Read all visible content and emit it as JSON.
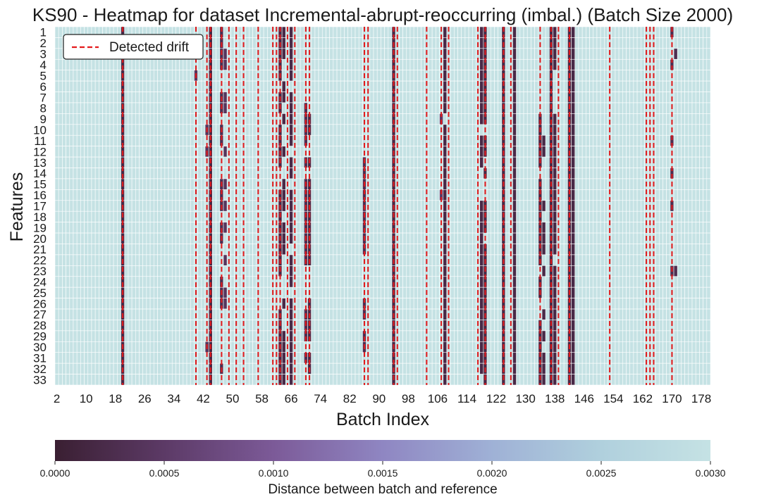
{
  "chart_data": {
    "type": "heatmap",
    "title": "KS90 - Heatmap for dataset Incremental-abrupt-reoccurring (imbal.) (Batch Size 2000)",
    "xlabel": "Batch Index",
    "ylabel": "Features",
    "x_range": [
      2,
      180
    ],
    "x_tick_labels": [
      "2",
      "10",
      "18",
      "26",
      "34",
      "42",
      "50",
      "58",
      "66",
      "74",
      "82",
      "90",
      "98",
      "106",
      "114",
      "122",
      "130",
      "138",
      "146",
      "154",
      "162",
      "170",
      "178"
    ],
    "y_tick_labels": [
      "1",
      "2",
      "3",
      "4",
      "5",
      "6",
      "7",
      "8",
      "9",
      "10",
      "11",
      "12",
      "13",
      "14",
      "15",
      "16",
      "17",
      "18",
      "19",
      "20",
      "21",
      "22",
      "23",
      "24",
      "25",
      "26",
      "27",
      "28",
      "29",
      "30",
      "31",
      "32",
      "33"
    ],
    "legend": {
      "entries": [
        "Detected drift"
      ],
      "placement": "top-left"
    },
    "drift_line_color": "#e41a1c",
    "detected_drift_batches": [
      20,
      40,
      43,
      44,
      47,
      49,
      51,
      53,
      57,
      61,
      62,
      63,
      65,
      67,
      70,
      71,
      86,
      87,
      94,
      95,
      103,
      107,
      109,
      117,
      119,
      124,
      126,
      134,
      137,
      139,
      142,
      153,
      163,
      164,
      165,
      170
    ],
    "default_distance": 0.003,
    "drift_columns": [
      {
        "batch": 20,
        "features": [
          1,
          2,
          3,
          4,
          5,
          6,
          7,
          8,
          9,
          10,
          11,
          12,
          13,
          14,
          15,
          16,
          17,
          18,
          19,
          20,
          21,
          22,
          23,
          24,
          25,
          26,
          27,
          28,
          29,
          30,
          31,
          32,
          33
        ],
        "value": 0.0002
      },
      {
        "batch": 40,
        "features": [
          5
        ],
        "value": 0.0004
      },
      {
        "batch": 43,
        "features": [
          10,
          12,
          30
        ],
        "value": 0.0004
      },
      {
        "batch": 44,
        "features": [
          1,
          2,
          3,
          4,
          5,
          6,
          7,
          8,
          9,
          10,
          11,
          12,
          13,
          14,
          15,
          16,
          17,
          18,
          19,
          20,
          21,
          22,
          23,
          24,
          25,
          26,
          27,
          28,
          29,
          30,
          31,
          32,
          33
        ],
        "value": 0.0002
      },
      {
        "batch": 47,
        "features": [
          1,
          2,
          3,
          4,
          7,
          8,
          10,
          11,
          15,
          16,
          17,
          19,
          20,
          24,
          25,
          26,
          32
        ],
        "value": 0.0003
      },
      {
        "batch": 48,
        "features": [
          3,
          4,
          7,
          8,
          12,
          15,
          17,
          19,
          22,
          25,
          26
        ],
        "value": 0.0004
      },
      {
        "batch": 63,
        "features": [
          1,
          2,
          3,
          4,
          5,
          7,
          8,
          10,
          11,
          12,
          13,
          16,
          17,
          18,
          19,
          20,
          21,
          22,
          23,
          27,
          28,
          29,
          30,
          31,
          32,
          33
        ],
        "value": 0.0002
      },
      {
        "batch": 64,
        "features": [
          1,
          2,
          3,
          6,
          7,
          9,
          12,
          15,
          16,
          17,
          19,
          20,
          21,
          26,
          29,
          30,
          31,
          32,
          33
        ],
        "value": 0.0002
      },
      {
        "batch": 66,
        "features": [
          1,
          2,
          3,
          4,
          5,
          7,
          8,
          9,
          10,
          11,
          13,
          14,
          16,
          17,
          18,
          19,
          20,
          22,
          23,
          24,
          26,
          27,
          28,
          29,
          30,
          31,
          32,
          33
        ],
        "value": 0.0002
      },
      {
        "batch": 70,
        "features": [
          8,
          9,
          10,
          11,
          13,
          15,
          16,
          17,
          18,
          19,
          20,
          21,
          22,
          27,
          28,
          29,
          31
        ],
        "value": 0.0003
      },
      {
        "batch": 71,
        "features": [
          9,
          10,
          13,
          15,
          16,
          17,
          18,
          19,
          20,
          21,
          22,
          26,
          27,
          28,
          29,
          31,
          32
        ],
        "value": 0.0002
      },
      {
        "batch": 86,
        "features": [
          13,
          14,
          15,
          16,
          17,
          18,
          19,
          20,
          21,
          26,
          27,
          29,
          30
        ],
        "value": 0.0003
      },
      {
        "batch": 94,
        "features": [
          1,
          2,
          3,
          4,
          5,
          6,
          7,
          8,
          9,
          10,
          11,
          12,
          13,
          14,
          15,
          16,
          17,
          18,
          19,
          20,
          21,
          22,
          23,
          24,
          25,
          26,
          27,
          28,
          29,
          30,
          31,
          32,
          33
        ],
        "value": 0.0002
      },
      {
        "batch": 107,
        "features": [
          9,
          16
        ],
        "value": 0.0005
      },
      {
        "batch": 108,
        "features": [
          1,
          2,
          3,
          4,
          5,
          6,
          7,
          8,
          10,
          11,
          12,
          13,
          14,
          15,
          16,
          17,
          18,
          19,
          20,
          21,
          22,
          23,
          24,
          25,
          26,
          27,
          28,
          29,
          30,
          31,
          32,
          33
        ],
        "value": 0.0002
      },
      {
        "batch": 118,
        "features": [
          1,
          2,
          3,
          4,
          5,
          6,
          7,
          8,
          9,
          11,
          12,
          13,
          17,
          18,
          19,
          20,
          21,
          22,
          23,
          24,
          25,
          26,
          27,
          28,
          29,
          30,
          31,
          32
        ],
        "value": 0.0002
      },
      {
        "batch": 119,
        "features": [
          1,
          2,
          3,
          4,
          5,
          6,
          7,
          8,
          9,
          11,
          12,
          14,
          17,
          18,
          19,
          21,
          22,
          23,
          24,
          25,
          26,
          27,
          28,
          29,
          30,
          31,
          32,
          33
        ],
        "value": 0.0002
      },
      {
        "batch": 124,
        "features": [
          1,
          2,
          3,
          4,
          5,
          6,
          7,
          8,
          9,
          10,
          11,
          12,
          13,
          14,
          15,
          16,
          17,
          18,
          19,
          20,
          21,
          22,
          23,
          24,
          25,
          26,
          27,
          28,
          29,
          30,
          31,
          32,
          33
        ],
        "value": 0.0002
      },
      {
        "batch": 127,
        "features": [
          1,
          2,
          3,
          4,
          5,
          6,
          7,
          8,
          9,
          10,
          11,
          12,
          13,
          14,
          15,
          16,
          17,
          18,
          19,
          20,
          21,
          22,
          23,
          24,
          25,
          26,
          27,
          28,
          29,
          30,
          31,
          32,
          33
        ],
        "value": 0.0002
      },
      {
        "batch": 134,
        "features": [
          9,
          10,
          11,
          12,
          13,
          15,
          16,
          17,
          18,
          19,
          20,
          21,
          22,
          24,
          25,
          28,
          29,
          30,
          31,
          32,
          33
        ],
        "value": 0.0002
      },
      {
        "batch": 135,
        "features": [
          11,
          12,
          17,
          19,
          20,
          21,
          23,
          27,
          29,
          31,
          32,
          33
        ],
        "value": 0.0002
      },
      {
        "batch": 137,
        "features": [
          1,
          2,
          3,
          4,
          5,
          6,
          7,
          8,
          9,
          10,
          11,
          12,
          13,
          14,
          15,
          16,
          17,
          18,
          19,
          20,
          21,
          22,
          23,
          24,
          25,
          26,
          27,
          28,
          29,
          30,
          31,
          32,
          33
        ],
        "value": 0.0002
      },
      {
        "batch": 138,
        "features": [
          1,
          2,
          3,
          4,
          9,
          10,
          11,
          12,
          13,
          14,
          15,
          16,
          17,
          18,
          19,
          20,
          21,
          23,
          24,
          25,
          26,
          27,
          28,
          29,
          30,
          31,
          32,
          33
        ],
        "value": 0.0002
      },
      {
        "batch": 142,
        "features": [
          1,
          2,
          3,
          4,
          5,
          6,
          7,
          8,
          9,
          10,
          11,
          12,
          13,
          14,
          15,
          16,
          17,
          18,
          19,
          20,
          21,
          22,
          23,
          24,
          25,
          26,
          27,
          28,
          29,
          30,
          31,
          32,
          33
        ],
        "value": 0.0002
      },
      {
        "batch": 143,
        "features": [
          1,
          2,
          3,
          4,
          5,
          6,
          7,
          8,
          9,
          10,
          11,
          12,
          13,
          14,
          15,
          16,
          17,
          18,
          19,
          20,
          21,
          22,
          23,
          24,
          25,
          26,
          27,
          28,
          29,
          30,
          31,
          32,
          33
        ],
        "value": 0.0002
      },
      {
        "batch": 170,
        "features": [
          1,
          4,
          11,
          14,
          17,
          23
        ],
        "value": 0.0003
      },
      {
        "batch": 171,
        "features": [
          3,
          23
        ],
        "value": 0.0003
      }
    ],
    "colorbar": {
      "label": "Distance between batch and reference",
      "min": 0.0,
      "max": 0.003,
      "tick_labels": [
        "0.0000",
        "0.0005",
        "0.0010",
        "0.0015",
        "0.0020",
        "0.0025",
        "0.0030"
      ],
      "colors": [
        "#3a1f32",
        "#5c3a66",
        "#7c5a98",
        "#8f86c2",
        "#9fb1d6",
        "#b0d0dd",
        "#c5e2e4"
      ]
    }
  }
}
